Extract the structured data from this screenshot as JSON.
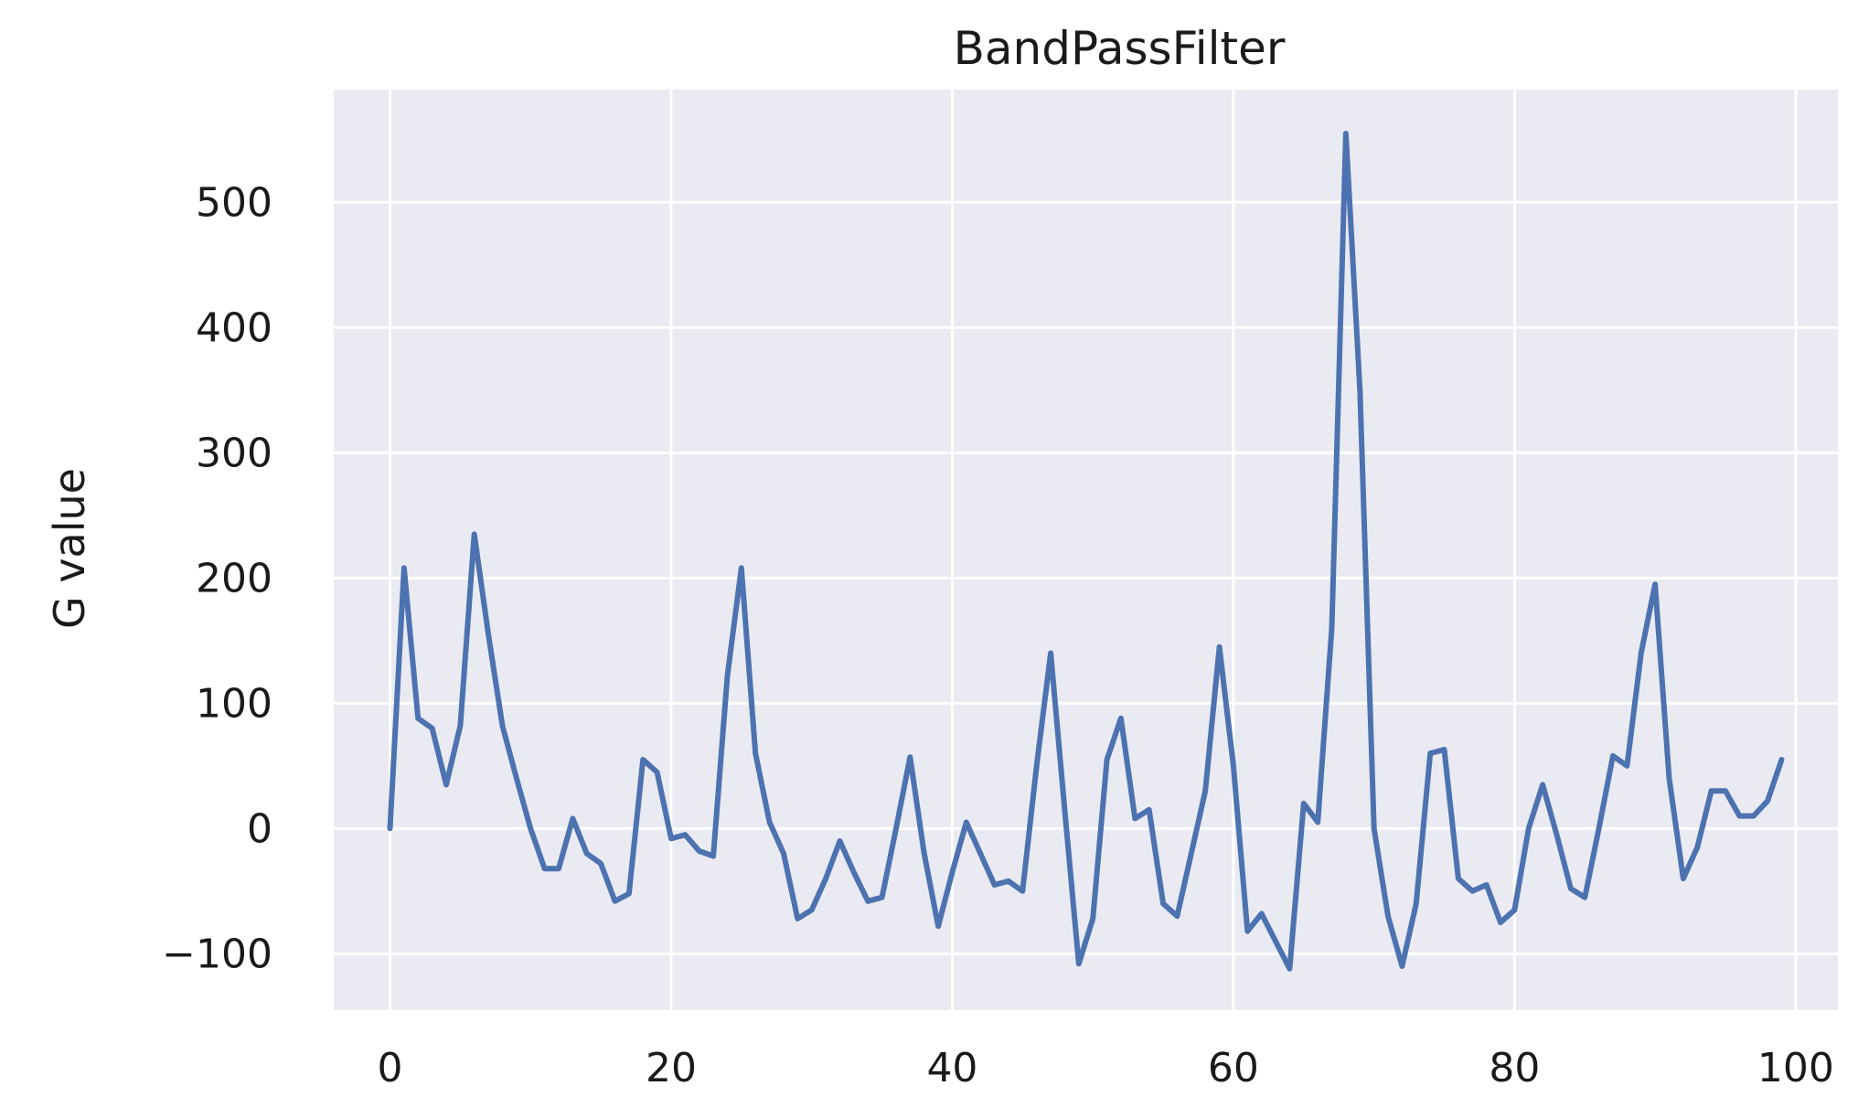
{
  "chart_data": {
    "type": "line",
    "title": "BandPassFilter",
    "xlabel": "",
    "ylabel": "G value",
    "xlim": [
      -4,
      103
    ],
    "ylim": [
      -145,
      590
    ],
    "xticks": [
      0,
      20,
      40,
      60,
      80,
      100
    ],
    "yticks": [
      -100,
      0,
      100,
      200,
      300,
      400,
      500
    ],
    "xtick_labels": [
      "0",
      "20",
      "40",
      "60",
      "80",
      "100"
    ],
    "ytick_labels": [
      "−100",
      "0",
      "100",
      "200",
      "300",
      "400",
      "500"
    ],
    "grid": true,
    "background": "#eaeaf2",
    "line_color": "#4c72b0",
    "series": [
      {
        "x": [
          0,
          1,
          2,
          3,
          4,
          5,
          6,
          7,
          8,
          9,
          10,
          11,
          12,
          13,
          14,
          15,
          16,
          17,
          18,
          19,
          20,
          21,
          22,
          23,
          24,
          25,
          26,
          27,
          28,
          29,
          30,
          31,
          32,
          33,
          34,
          35,
          36,
          37,
          38,
          39,
          40,
          41,
          42,
          43,
          44,
          45,
          46,
          47,
          48,
          49,
          50,
          51,
          52,
          53,
          54,
          55,
          56,
          57,
          58,
          59,
          60,
          61,
          62,
          63,
          64,
          65,
          66,
          67,
          68,
          69,
          70,
          71,
          72,
          73,
          74,
          75,
          76,
          77,
          78,
          79,
          80,
          81,
          82,
          83,
          84,
          85,
          86,
          87,
          88,
          89,
          90,
          91,
          92,
          93,
          94,
          95,
          96,
          97,
          98,
          99
        ],
        "values": [
          0,
          208,
          88,
          80,
          35,
          82,
          235,
          155,
          82,
          40,
          0,
          -32,
          -32,
          8,
          -20,
          -28,
          -58,
          -52,
          55,
          45,
          -8,
          -5,
          -18,
          -22,
          122,
          208,
          60,
          5,
          -20,
          -72,
          -65,
          -40,
          -10,
          -35,
          -58,
          -55,
          0,
          57,
          -20,
          -78,
          -35,
          5,
          -20,
          -45,
          -42,
          -50,
          50,
          140,
          15,
          -108,
          -72,
          55,
          88,
          8,
          15,
          -60,
          -70,
          -20,
          30,
          145,
          50,
          -82,
          -68,
          -90,
          -112,
          20,
          5,
          160,
          555,
          350,
          0,
          -70,
          -110,
          -60,
          60,
          63,
          -40,
          -50,
          -45,
          -75,
          -65,
          0,
          35,
          -5,
          -48,
          -55,
          0,
          58,
          50,
          140,
          195,
          40,
          -40,
          -15,
          30,
          30,
          10,
          10,
          22,
          55
        ]
      }
    ]
  }
}
